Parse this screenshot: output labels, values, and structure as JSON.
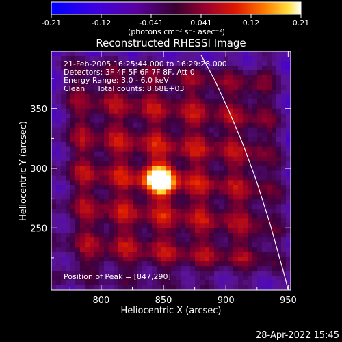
{
  "colorbar": {
    "ticks": [
      "-0.21",
      "-0.12",
      "-0.041",
      "0.041",
      "0.12",
      "0.21"
    ],
    "units_label": "(photons cm⁻² s⁻¹ asec⁻²)"
  },
  "chart_data": {
    "type": "heatmap",
    "title": "Reconstructed RHESSI Image",
    "xlabel": "Heliocentric X (arcsec)",
    "ylabel": "Heliocentric Y (arcsec)",
    "xlim": [
      760,
      952
    ],
    "ylim": [
      198,
      398
    ],
    "xticks": [
      800,
      850,
      900,
      950
    ],
    "yticks": [
      250,
      300,
      350
    ],
    "value_range": [
      -0.21,
      0.21
    ],
    "peak": [
      847,
      290
    ],
    "limb_curve": {
      "x": [
        880,
        891,
        902,
        913,
        924,
        935,
        946,
        950
      ],
      "y": [
        395,
        374,
        349,
        322,
        291,
        255,
        214,
        198
      ]
    },
    "annotations": {
      "time_range": "21-Feb-2005 16:25:44.000 to 16:29:28.000",
      "detectors": "Detectors: 3F 4F 5F 6F 7F 8F, Att 0",
      "energy": "Energy Range: 3.0 - 6.0 keV",
      "clean": "Clean     Total counts: 8.68E+03",
      "peak_label": "Position of Peak = [847,290]"
    }
  },
  "footer": {
    "timestamp": "28-Apr-2022 15:45"
  }
}
